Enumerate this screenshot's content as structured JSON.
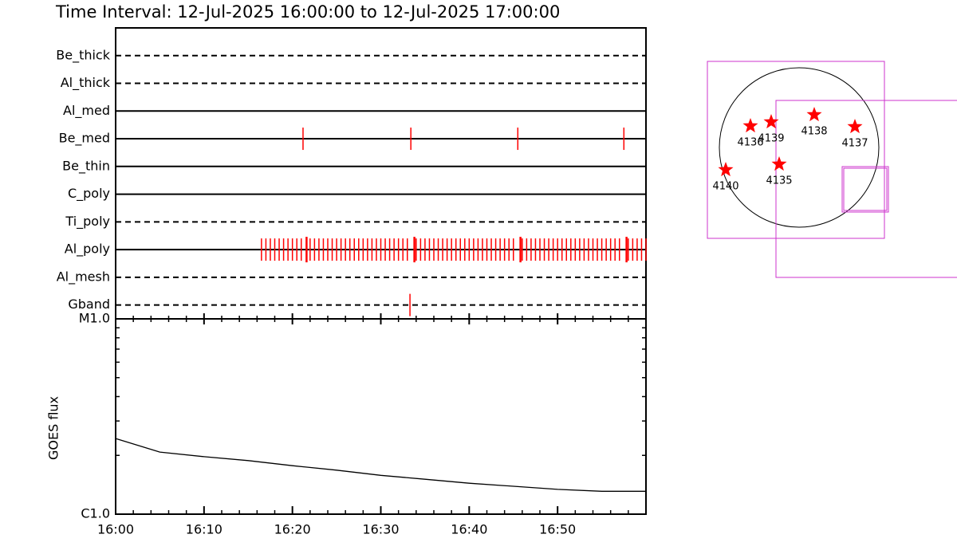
{
  "chart_data": {
    "type": "timeline",
    "title": "Time Interval: 12-Jul-2025 16:00:00 to 12-Jul-2025 17:00:00",
    "xlim": [
      0,
      60
    ],
    "xticks": [
      {
        "value": 0,
        "label": "16:00"
      },
      {
        "value": 10,
        "label": "16:10"
      },
      {
        "value": 20,
        "label": "16:20"
      },
      {
        "value": 30,
        "label": "16:30"
      },
      {
        "value": 40,
        "label": "16:40"
      },
      {
        "value": 50,
        "label": "16:50"
      }
    ],
    "xminorticks": [
      2,
      4,
      6,
      8,
      12,
      14,
      16,
      18,
      22,
      24,
      26,
      28,
      32,
      34,
      36,
      38,
      42,
      44,
      46,
      48,
      52,
      54,
      56,
      58
    ],
    "event_color": "#ff0000",
    "rows": [
      {
        "name": "Be_thick",
        "style": "dashed",
        "events": []
      },
      {
        "name": "Al_thick",
        "style": "dashed",
        "events": []
      },
      {
        "name": "Al_med",
        "style": "solid",
        "events": []
      },
      {
        "name": "Be_med",
        "style": "solid",
        "events": [
          21.2,
          33.4,
          45.5,
          57.5
        ]
      },
      {
        "name": "Be_thin",
        "style": "solid",
        "events": []
      },
      {
        "name": "C_poly",
        "style": "solid",
        "events": []
      },
      {
        "name": "Ti_poly",
        "style": "dashed",
        "events": []
      },
      {
        "name": "Al_poly",
        "style": "solid",
        "events": [
          16.5,
          17,
          17.5,
          18,
          18.5,
          19,
          19.5,
          20,
          20.5,
          21,
          22,
          22.5,
          23,
          23.5,
          24,
          24.5,
          25,
          25.5,
          26,
          26.5,
          27,
          27.5,
          28,
          28.5,
          29,
          29.5,
          30,
          30.5,
          31,
          31.5,
          32,
          32.5,
          33,
          34,
          34.5,
          35,
          35.5,
          36,
          36.5,
          37,
          37.5,
          38,
          38.5,
          39,
          39.5,
          40,
          40.5,
          41,
          41.5,
          42,
          42.5,
          43,
          43.5,
          44,
          44.5,
          45,
          46,
          46.5,
          47,
          47.5,
          48,
          48.5,
          49,
          49.5,
          50,
          50.5,
          51,
          51.5,
          52,
          52.5,
          53,
          53.5,
          54,
          54.5,
          55,
          55.5,
          56,
          56.5,
          57,
          58,
          58.5,
          59,
          59.5,
          60
        ],
        "long_events": [
          21.6,
          33.8,
          45.8,
          57.8
        ]
      },
      {
        "name": "Al_mesh",
        "style": "dashed",
        "events": []
      },
      {
        "name": "Gband",
        "style": "dashed",
        "events": [
          33.3
        ]
      }
    ],
    "goes": {
      "ylabel": "GOES flux",
      "log_scale": true,
      "ylim": [
        1e-06,
        1e-05
      ],
      "yticks": [
        {
          "value": 1e-06,
          "label": "C1.0"
        },
        {
          "value": 1e-05,
          "label": "M1.0"
        }
      ],
      "yminorticks": [
        2e-06,
        3e-06,
        4e-06,
        5e-06,
        6e-06,
        7e-06,
        8e-06,
        9e-06
      ],
      "x": [
        0,
        5,
        10,
        15,
        20,
        25,
        30,
        35,
        40,
        45,
        50,
        55,
        60
      ],
      "values": [
        2.44e-06,
        2.08e-06,
        1.97e-06,
        1.88e-06,
        1.77e-06,
        1.68e-06,
        1.58e-06,
        1.51e-06,
        1.44e-06,
        1.39e-06,
        1.34e-06,
        1.31e-06,
        1.31e-06
      ],
      "color": "#000000"
    },
    "map": {
      "star_color": "#ff0000",
      "box_color": "#cc33cc",
      "regions": [
        {
          "label": "4136"
        },
        {
          "label": "4139"
        },
        {
          "label": "4138"
        },
        {
          "label": "4137"
        },
        {
          "label": "4140"
        },
        {
          "label": "4135"
        }
      ]
    }
  }
}
